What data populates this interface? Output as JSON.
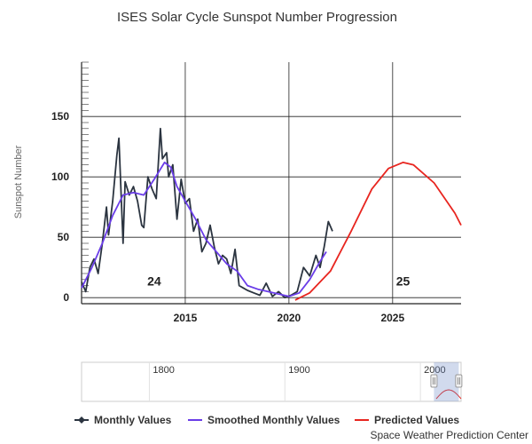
{
  "chart_data": {
    "type": "line",
    "title": "ISES Solar Cycle Sunspot Number Progression",
    "xlabel": "",
    "ylabel": "Sunspot Number",
    "xlim": [
      2010.0,
      2028.3
    ],
    "ylim": [
      -5,
      195
    ],
    "x_ticks": [
      2015,
      2020,
      2025
    ],
    "y_ticks": [
      0,
      50,
      100,
      150
    ],
    "cycle_labels": [
      {
        "text": "24",
        "x": 2013.5,
        "y": 10
      },
      {
        "text": "25",
        "x": 2025.5,
        "y": 10
      }
    ],
    "series": [
      {
        "name": "Monthly Values",
        "color": "#2b3440",
        "x": [
          2010.0,
          2010.2,
          2010.4,
          2010.6,
          2010.8,
          2011.0,
          2011.2,
          2011.3,
          2011.5,
          2011.7,
          2011.8,
          2012.0,
          2012.1,
          2012.3,
          2012.5,
          2012.7,
          2012.9,
          2013.0,
          2013.2,
          2013.4,
          2013.6,
          2013.8,
          2013.9,
          2014.1,
          2014.2,
          2014.4,
          2014.6,
          2014.8,
          2015.0,
          2015.2,
          2015.4,
          2015.6,
          2015.8,
          2016.0,
          2016.2,
          2016.4,
          2016.6,
          2016.8,
          2017.0,
          2017.2,
          2017.4,
          2017.6,
          2017.8,
          2018.0,
          2018.3,
          2018.6,
          2018.9,
          2019.2,
          2019.5,
          2019.8,
          2020.1,
          2020.4,
          2020.7,
          2021.0,
          2021.3,
          2021.5,
          2021.7,
          2021.9,
          2022.1
        ],
        "values": [
          13,
          5,
          25,
          32,
          20,
          45,
          75,
          52,
          80,
          118,
          132,
          45,
          96,
          85,
          92,
          80,
          60,
          58,
          100,
          90,
          82,
          140,
          115,
          120,
          100,
          110,
          65,
          98,
          78,
          82,
          55,
          65,
          38,
          45,
          60,
          42,
          28,
          35,
          32,
          20,
          40,
          10,
          8,
          6,
          4,
          2,
          12,
          1,
          5,
          0,
          2,
          5,
          25,
          18,
          35,
          25,
          42,
          63,
          55
        ]
      },
      {
        "name": "Smoothed Monthly Values",
        "color": "#6a3de8",
        "x": [
          2010.0,
          2010.5,
          2011.0,
          2011.5,
          2012.0,
          2012.5,
          2013.0,
          2013.5,
          2014.0,
          2014.3,
          2014.6,
          2015.0,
          2015.5,
          2016.0,
          2016.5,
          2017.0,
          2017.5,
          2018.0,
          2018.5,
          2019.0,
          2019.5,
          2020.0,
          2020.5,
          2021.0,
          2021.5,
          2021.8
        ],
        "values": [
          8,
          25,
          45,
          68,
          85,
          87,
          85,
          98,
          112,
          108,
          92,
          80,
          65,
          48,
          38,
          28,
          22,
          10,
          7,
          5,
          3,
          1,
          4,
          15,
          30,
          38
        ]
      },
      {
        "name": "Predicted Values",
        "color": "#e8251f",
        "x": [
          2020.3,
          2021,
          2022,
          2023,
          2024,
          2024.8,
          2025.5,
          2026,
          2027,
          2028,
          2028.3
        ],
        "values": [
          -2,
          4,
          22,
          55,
          90,
          107,
          112,
          110,
          95,
          70,
          60
        ]
      }
    ],
    "navigator": {
      "tick_labels": [
        "1800",
        "1900",
        "2000"
      ],
      "xlim": [
        1750,
        2030
      ]
    },
    "legend": [
      "Monthly Values",
      "Smoothed Monthly Values",
      "Predicted Values"
    ]
  },
  "credit": "Space Weather Prediction Center"
}
